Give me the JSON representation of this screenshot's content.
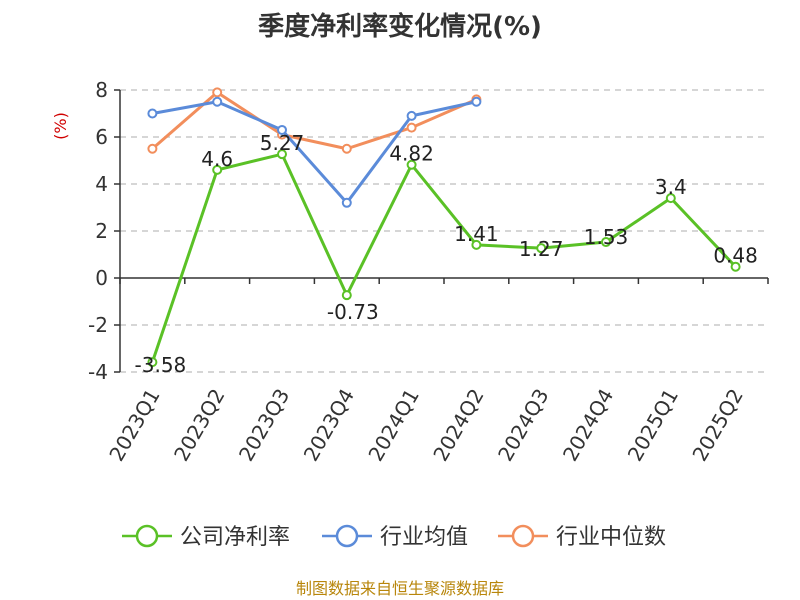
{
  "chart_data": {
    "type": "line",
    "title": "季度净利率变化情况(%)",
    "ylabel": "(%)",
    "xlabel": "",
    "ylim": [
      -4,
      8
    ],
    "yticks": [
      "8",
      "6",
      "4",
      "2",
      "0",
      "-2",
      "-4"
    ],
    "categories": [
      "2023Q1",
      "2023Q2",
      "2023Q3",
      "2023Q4",
      "2024Q1",
      "2024Q2",
      "2024Q3",
      "2024Q4",
      "2025Q1",
      "2025Q2"
    ],
    "grid": true,
    "legend_position": "bottom",
    "series": [
      {
        "name": "公司净利率",
        "color": "#5ac126",
        "values": [
          -3.58,
          4.6,
          5.27,
          -0.73,
          4.82,
          1.41,
          1.27,
          1.53,
          3.4,
          0.48
        ],
        "labels": [
          "-3.58",
          "4.6",
          "5.27",
          "-0.73",
          "4.82",
          "1.41",
          "1.27",
          "1.53",
          "3.4",
          "0.48"
        ]
      },
      {
        "name": "行业均值",
        "color": "#5b8bd9",
        "values": [
          7.0,
          7.5,
          6.3,
          3.2,
          6.9,
          7.5,
          null,
          null,
          null,
          null
        ]
      },
      {
        "name": "行业中位数",
        "color": "#f28e5c",
        "values": [
          5.5,
          7.9,
          6.1,
          5.5,
          6.4,
          7.6,
          null,
          null,
          null,
          null
        ]
      }
    ]
  },
  "footer": {
    "source": "制图数据来自恒生聚源数据库"
  }
}
